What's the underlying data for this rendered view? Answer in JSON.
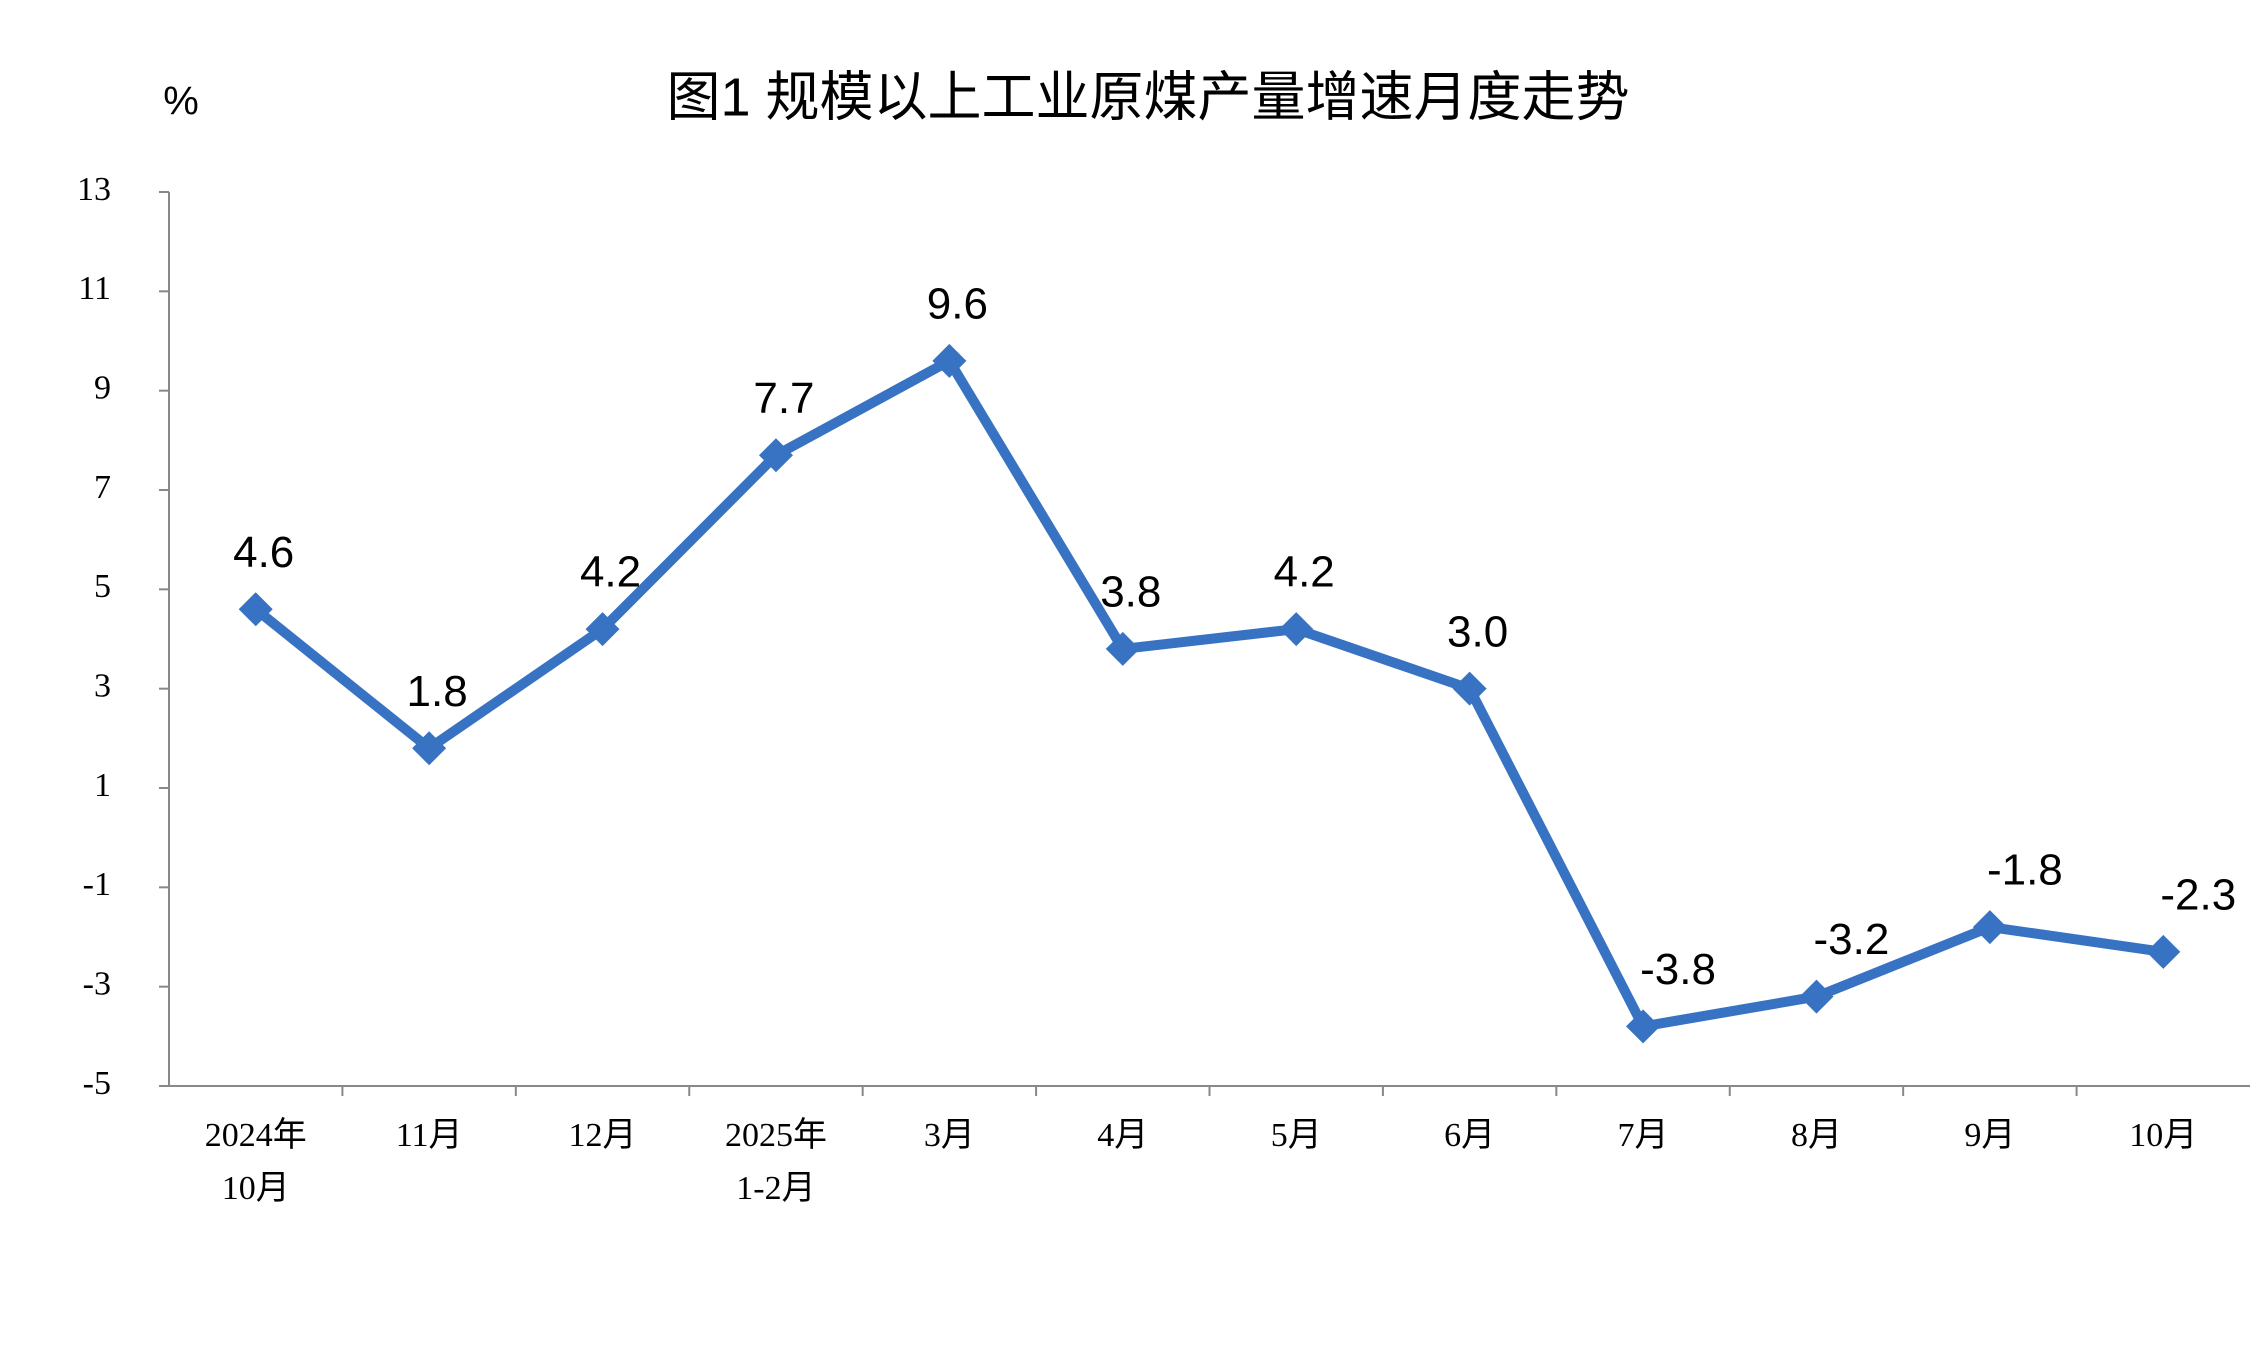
{
  "chart_data": {
    "type": "line",
    "title": "图1  规模以上工业原煤产量增速月度走势",
    "y_unit": "%",
    "categories": [
      [
        "2024年",
        "10月"
      ],
      [
        "11月"
      ],
      [
        "12月"
      ],
      [
        "2025年",
        "1-2月"
      ],
      [
        "3月"
      ],
      [
        "4月"
      ],
      [
        "5月"
      ],
      [
        "6月"
      ],
      [
        "7月"
      ],
      [
        "8月"
      ],
      [
        "9月"
      ],
      [
        "10月"
      ]
    ],
    "series": [
      {
        "color": "#3873c3",
        "values": [
          4.6,
          1.8,
          4.2,
          7.7,
          9.6,
          3.8,
          4.2,
          3.0,
          -3.8,
          -3.2,
          -1.8,
          -2.3
        ],
        "value_labels": [
          "4.6",
          "1.8",
          "4.2",
          "7.7",
          "9.6",
          "3.8",
          "4.2",
          "3.0",
          "-3.8",
          "-3.2",
          "-1.8",
          "-2.3"
        ]
      }
    ],
    "ylim": [
      -5,
      13
    ],
    "yticks": [
      -5,
      -3,
      -1,
      1,
      3,
      5,
      7,
      9,
      11,
      13
    ],
    "grid": false
  }
}
